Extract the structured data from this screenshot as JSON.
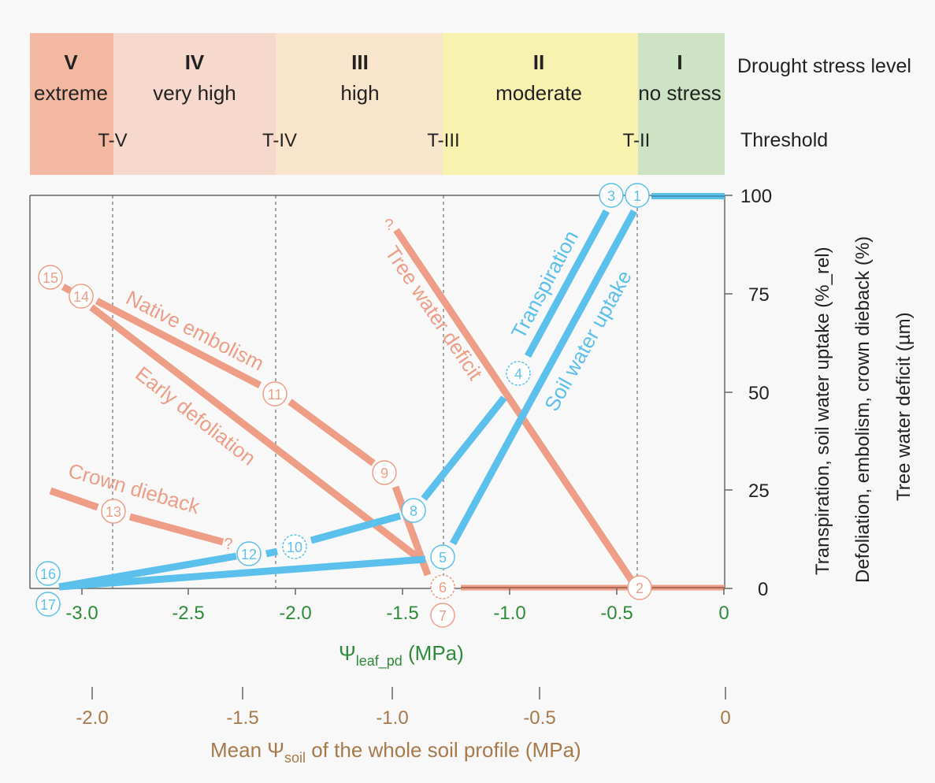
{
  "stress_levels": [
    {
      "roman": "V",
      "label": "extreme",
      "color": "#f2b8a2",
      "threshold": "T-V"
    },
    {
      "roman": "IV",
      "label": "very high",
      "color": "#f6d8cd",
      "threshold": "T-IV"
    },
    {
      "roman": "III",
      "label": "high",
      "color": "#f9e5cc",
      "threshold": "T-III"
    },
    {
      "roman": "II",
      "label": "moderate",
      "color": "#f8f2b0",
      "threshold": "T-II"
    },
    {
      "roman": "I",
      "label": "no stress",
      "color": "#cde3c4",
      "threshold": ""
    }
  ],
  "header": {
    "drought_stress_title": "Drought stress level",
    "threshold_title": "Threshold"
  },
  "axes": {
    "x_main_ticks": [
      "-3.0",
      "-2.5",
      "-2.0",
      "-1.5",
      "-1.0",
      "-0.5",
      "0"
    ],
    "x_main_label_base": "Ψ",
    "x_main_label_sub": "leaf_pd",
    "x_main_label_unit": " (MPa)",
    "x_soil_ticks": [
      "-2.0",
      "-1.5",
      "-1.0",
      "-0.5",
      "0"
    ],
    "x_soil_label_pre": "Mean Ψ",
    "x_soil_label_sub": "soil",
    "x_soil_label_post": " of the whole soil profile (MPa)",
    "y_ticks": [
      "0",
      "25",
      "50",
      "75",
      "100"
    ],
    "y_label_1": "Transpiration, soil water uptake (%_rel)",
    "y_label_2": "Defoliation, embolism, crown dieback (%)",
    "y_label_3": "Tree water deficit (µm)"
  },
  "curves": {
    "transpiration": "Transpiration",
    "soil_water_uptake": "Soil water uptake",
    "tree_water_deficit": "Tree water deficit",
    "native_embolism": "Native embolism",
    "early_defoliation": "Early defoliation",
    "crown_dieback": "Crown dieback"
  },
  "markers": [
    "1",
    "2",
    "3",
    "4",
    "5",
    "6",
    "7",
    "8",
    "9",
    "10",
    "11",
    "12",
    "13",
    "14",
    "15",
    "16",
    "17"
  ],
  "question_mark": "?",
  "colors": {
    "blue": "#5bc0eb",
    "salmon": "#ee9e86",
    "green_axis": "#2e8b3a",
    "brown_axis": "#a8794a"
  },
  "chart_data": {
    "type": "line",
    "xlabel": "Ψleaf_pd (MPa)",
    "ylim": [
      0,
      100
    ],
    "xlim": [
      -3.1,
      0
    ],
    "series": [
      {
        "name": "Transpiration",
        "points": [
          [
            -3.1,
            0
          ],
          [
            -1.25,
            8
          ],
          [
            -1.5,
            20
          ],
          [
            -0.95,
            50
          ],
          [
            -0.85,
            60
          ],
          [
            -0.47,
            96
          ]
        ]
      },
      {
        "name": "Soil water uptake",
        "points": [
          [
            -3.1,
            0
          ],
          [
            -1.4,
            8
          ],
          [
            -0.43,
            96
          ]
        ]
      },
      {
        "name": "Tree water deficit",
        "points": [
          [
            -1.45,
            91
          ],
          [
            -0.4,
            3
          ]
        ]
      },
      {
        "name": "Native embolism",
        "points": [
          [
            -3.2,
            80
          ],
          [
            -2.1,
            51
          ],
          [
            -1.5,
            27
          ],
          [
            -1.35,
            6
          ]
        ]
      },
      {
        "name": "Early defoliation",
        "points": [
          [
            -2.95,
            74
          ],
          [
            -1.35,
            8
          ]
        ]
      },
      {
        "name": "Crown dieback",
        "points": [
          [
            -3.15,
            25
          ],
          [
            -2.3,
            12
          ]
        ]
      }
    ]
  }
}
